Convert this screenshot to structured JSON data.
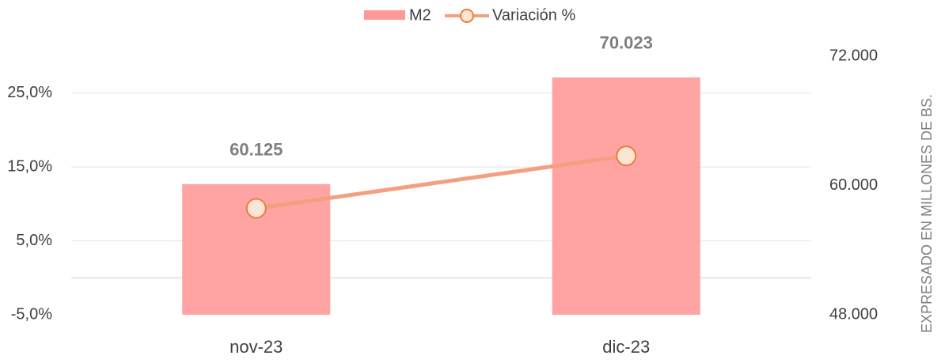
{
  "chart_data": {
    "type": "bar_line",
    "categories": [
      "nov-23",
      "dic-23"
    ],
    "series": [
      {
        "name": "M2",
        "color": "#ff9999",
        "values": [
          60125,
          70023
        ],
        "value_labels": [
          "60.125",
          "70.023"
        ],
        "axis": "y2"
      },
      {
        "name": "Variación %",
        "color": "#f4a080",
        "values": [
          9.4,
          16.5
        ],
        "type": "line"
      }
    ],
    "ylim": [
      -5,
      30
    ],
    "yticks": [
      {
        "value": -5,
        "label": "-5,0%"
      },
      {
        "value": 5,
        "label": "5,0%"
      },
      {
        "value": 15,
        "label": "15,0%"
      },
      {
        "value": 25,
        "label": "25,0%"
      }
    ],
    "y2lim": [
      48000,
      72000
    ],
    "y2ticks": [
      {
        "value": 48000,
        "label": "48.000"
      },
      {
        "value": 60000,
        "label": "60.000"
      },
      {
        "value": 72000,
        "label": "72.000"
      }
    ],
    "y2label": "EXPRESADO EN MILLONES DE BS.",
    "grid": true,
    "legend": "top"
  }
}
